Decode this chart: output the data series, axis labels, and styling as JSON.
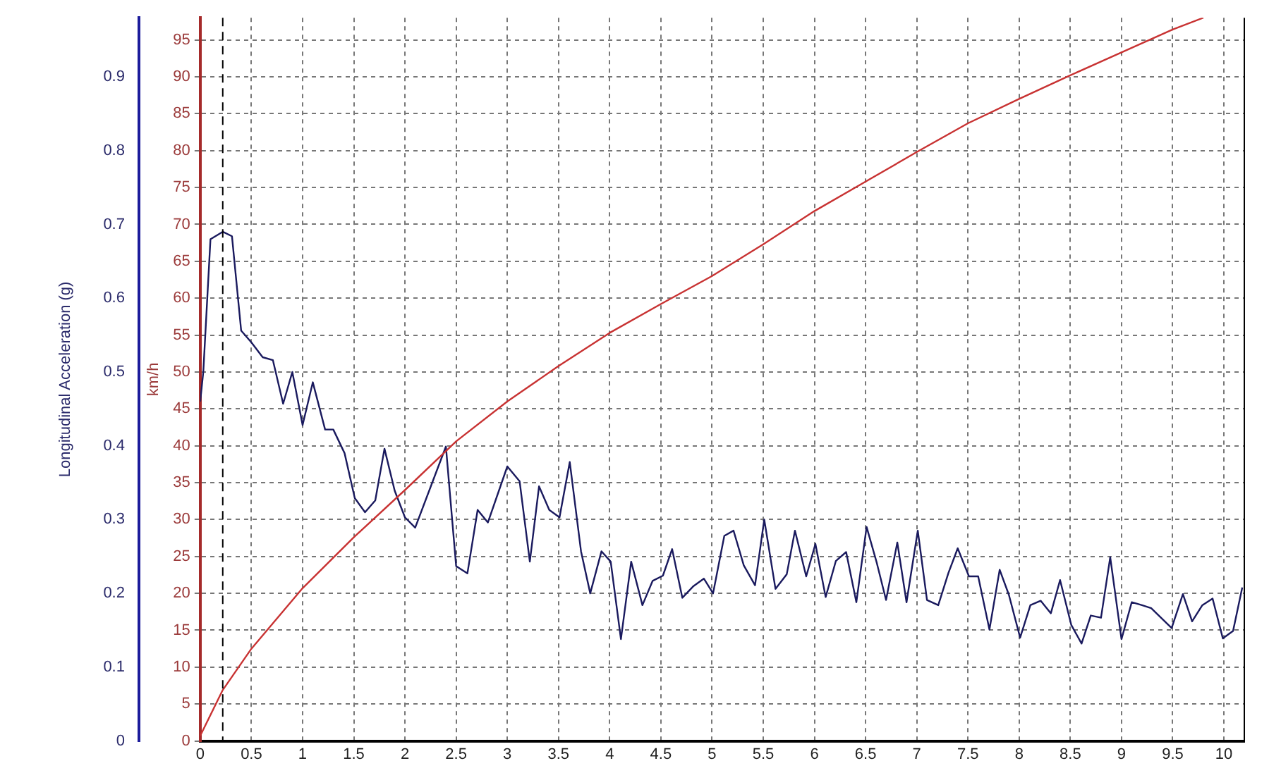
{
  "chart_data": {
    "type": "line",
    "xlim": [
      0,
      10.2
    ],
    "xticks": [
      0,
      0.5,
      1,
      1.5,
      2,
      2.5,
      3,
      3.5,
      4,
      4.5,
      5,
      5.5,
      6,
      6.5,
      7,
      7.5,
      8,
      8.5,
      9,
      9.5,
      10
    ],
    "ylabel": "km/h",
    "ylim": [
      0,
      98
    ],
    "yticks": [
      0,
      5,
      10,
      15,
      20,
      25,
      30,
      35,
      40,
      45,
      50,
      55,
      60,
      65,
      70,
      75,
      80,
      85,
      90,
      95
    ],
    "y2label": "Longitudinal Acceleration (g)",
    "y2lim": [
      0,
      0.98
    ],
    "y2ticks": [
      0,
      0.1,
      0.2,
      0.3,
      0.4,
      0.5,
      0.6,
      0.7,
      0.8,
      0.9
    ],
    "grid": true,
    "legend": false,
    "marker": "none",
    "line_style": "solid",
    "ref_lines": [
      {
        "axis": "x",
        "value": 0.22,
        "color": "#000000",
        "line_style": "dashed"
      }
    ],
    "series": [
      {
        "color": "#c83232",
        "x": [
          0,
          0.22,
          0.5,
          1,
          1.5,
          2,
          2.5,
          3,
          3.5,
          4,
          4.5,
          5,
          5.5,
          6,
          6.5,
          7,
          7.5,
          8,
          8.5,
          9,
          9.5,
          9.8
        ],
        "values": [
          0.7,
          6.9,
          12.5,
          20.7,
          27.6,
          34,
          40.6,
          46,
          50.8,
          55.3,
          59.2,
          63,
          67.3,
          71.8,
          75.8,
          79.8,
          83.7,
          87,
          90.2,
          93.3,
          96.4,
          98
        ]
      },
      {
        "color": "#1a1a5e",
        "axis": "y2",
        "x": [
          0,
          0.03,
          0.1,
          0.22,
          0.31,
          0.4,
          0.5,
          0.61,
          0.71,
          0.81,
          0.9,
          1,
          1.1,
          1.22,
          1.3,
          1.41,
          1.51,
          1.61,
          1.71,
          1.8,
          1.9,
          2,
          2.1,
          2.4,
          2.5,
          2.61,
          2.71,
          2.81,
          3,
          3.12,
          3.22,
          3.31,
          3.41,
          3.51,
          3.61,
          3.72,
          3.81,
          3.92,
          4.01,
          4.11,
          4.21,
          4.32,
          4.42,
          4.52,
          4.61,
          4.71,
          4.82,
          4.92,
          5.01,
          5.12,
          5.21,
          5.31,
          5.42,
          5.51,
          5.62,
          5.73,
          5.81,
          5.92,
          6.01,
          6.11,
          6.21,
          6.31,
          6.41,
          6.51,
          6.61,
          6.7,
          6.81,
          6.9,
          7.01,
          7.1,
          7.21,
          7.31,
          7.4,
          7.51,
          7.6,
          7.71,
          7.81,
          7.9,
          8.01,
          8.11,
          8.21,
          8.31,
          8.4,
          8.51,
          8.61,
          8.7,
          8.8,
          8.89,
          9,
          9.1,
          9.2,
          9.29,
          9.49,
          9.6,
          9.69,
          9.79,
          9.89,
          9.99,
          10.09,
          10.18
        ],
        "values": [
          0.46,
          0.5,
          0.68,
          0.69,
          0.684,
          0.556,
          0.54,
          0.52,
          0.516,
          0.457,
          0.5,
          0.428,
          0.486,
          0.422,
          0.422,
          0.39,
          0.329,
          0.31,
          0.326,
          0.396,
          0.339,
          0.303,
          0.289,
          0.399,
          0.237,
          0.227,
          0.313,
          0.296,
          0.372,
          0.352,
          0.243,
          0.345,
          0.313,
          0.303,
          0.378,
          0.257,
          0.2,
          0.257,
          0.243,
          0.138,
          0.243,
          0.184,
          0.217,
          0.224,
          0.26,
          0.194,
          0.21,
          0.22,
          0.2,
          0.278,
          0.285,
          0.238,
          0.211,
          0.3,
          0.206,
          0.226,
          0.285,
          0.223,
          0.267,
          0.195,
          0.244,
          0.256,
          0.188,
          0.29,
          0.241,
          0.191,
          0.269,
          0.188,
          0.285,
          0.191,
          0.184,
          0.228,
          0.261,
          0.223,
          0.223,
          0.151,
          0.232,
          0.198,
          0.14,
          0.184,
          0.19,
          0.173,
          0.218,
          0.157,
          0.132,
          0.17,
          0.167,
          0.249,
          0.138,
          0.188,
          0.184,
          0.18,
          0.153,
          0.199,
          0.162,
          0.184,
          0.193,
          0.139,
          0.149,
          0.208
        ]
      }
    ]
  }
}
